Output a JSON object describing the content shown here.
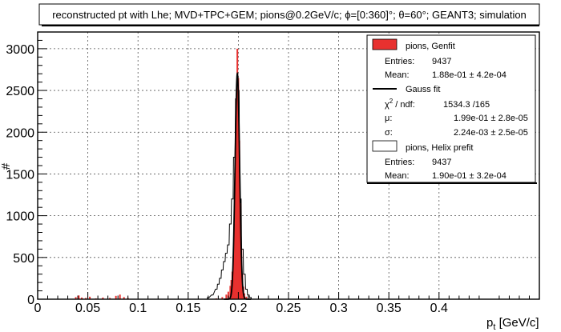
{
  "chart_data": {
    "type": "histogram",
    "title": "reconstructed pt with Lhe; MVD+TPC+GEM; pions@0.2GeV/c; ϕ=[0:360]°; θ=60°; GEANT3; simulation",
    "xlabel": "p",
    "xlabel_sub": "t",
    "xlabel_unit": " [GeV/c]",
    "ylabel": "#",
    "xlim": [
      0,
      0.5
    ],
    "ylim": [
      0,
      3200
    ],
    "xticks": [
      "0",
      "0.05",
      "0.1",
      "0.15",
      "0.2",
      "0.25",
      "0.3",
      "0.35",
      "0.4"
    ],
    "xtick_values": [
      0,
      0.05,
      0.1,
      0.15,
      0.2,
      0.25,
      0.3,
      0.35,
      0.4
    ],
    "yticks": [
      "0",
      "500",
      "1000",
      "1500",
      "2000",
      "2500",
      "3000"
    ],
    "ytick_values": [
      0,
      500,
      1000,
      1500,
      2000,
      2500,
      3000
    ],
    "grid": true,
    "legend_position": "top-right",
    "colors": {
      "genfit_fill": "#e8312f",
      "helix_line": "#000000",
      "gauss_line": "#000000"
    },
    "series": [
      {
        "name": "pions, Genfit",
        "style": "filled-histogram",
        "x": [
          0.038,
          0.041,
          0.044,
          0.048,
          0.052,
          0.058,
          0.065,
          0.072,
          0.078,
          0.082,
          0.086,
          0.09,
          0.178,
          0.184,
          0.188,
          0.19,
          0.192,
          0.193,
          0.194,
          0.195,
          0.196,
          0.197,
          0.198,
          0.199,
          0.2,
          0.201,
          0.202,
          0.203,
          0.204,
          0.205,
          0.206,
          0.208,
          0.21
        ],
        "y": [
          25,
          45,
          20,
          15,
          30,
          10,
          20,
          15,
          40,
          55,
          25,
          15,
          10,
          25,
          55,
          90,
          160,
          230,
          330,
          520,
          900,
          1500,
          2400,
          3000,
          2650,
          1900,
          1150,
          600,
          300,
          150,
          70,
          30,
          10
        ]
      },
      {
        "name": "pions, Helix prefit",
        "style": "outline-histogram",
        "x": [
          0.17,
          0.174,
          0.178,
          0.18,
          0.182,
          0.184,
          0.186,
          0.188,
          0.19,
          0.192,
          0.194,
          0.196,
          0.198,
          0.2,
          0.202,
          0.204,
          0.206,
          0.208,
          0.21,
          0.212
        ],
        "y": [
          20,
          50,
          120,
          180,
          250,
          350,
          450,
          550,
          650,
          900,
          1200,
          1700,
          2400,
          2500,
          1200,
          600,
          300,
          120,
          50,
          20
        ]
      },
      {
        "name": "Gauss fit",
        "style": "line",
        "mean": 0.199,
        "sigma": 0.00224,
        "amplitude": 2700
      }
    ],
    "stats": [
      {
        "type": "box",
        "label": "pions, Genfit"
      },
      {
        "type": "row",
        "label": "Entries:",
        "value": "9437"
      },
      {
        "type": "row",
        "label": "Mean:",
        "value": "1.88e-01 ± 4.2e-04"
      },
      {
        "type": "line",
        "label": "Gauss fit"
      },
      {
        "type": "chi",
        "label": "χ",
        "sup": "2",
        "label_rest": " / ndf:",
        "value": "1534.3 /165"
      },
      {
        "type": "row",
        "label": "μ:",
        "value": "1.99e-01 ± 2.8e-05"
      },
      {
        "type": "row",
        "label": "σ:",
        "value": "2.24e-03 ± 2.5e-05"
      },
      {
        "type": "hbox",
        "label": "pions, Helix prefit"
      },
      {
        "type": "row",
        "label": "Entries:",
        "value": "9437"
      },
      {
        "type": "row",
        "label": "Mean:",
        "value": "1.90e-01 ± 3.2e-04"
      }
    ]
  }
}
